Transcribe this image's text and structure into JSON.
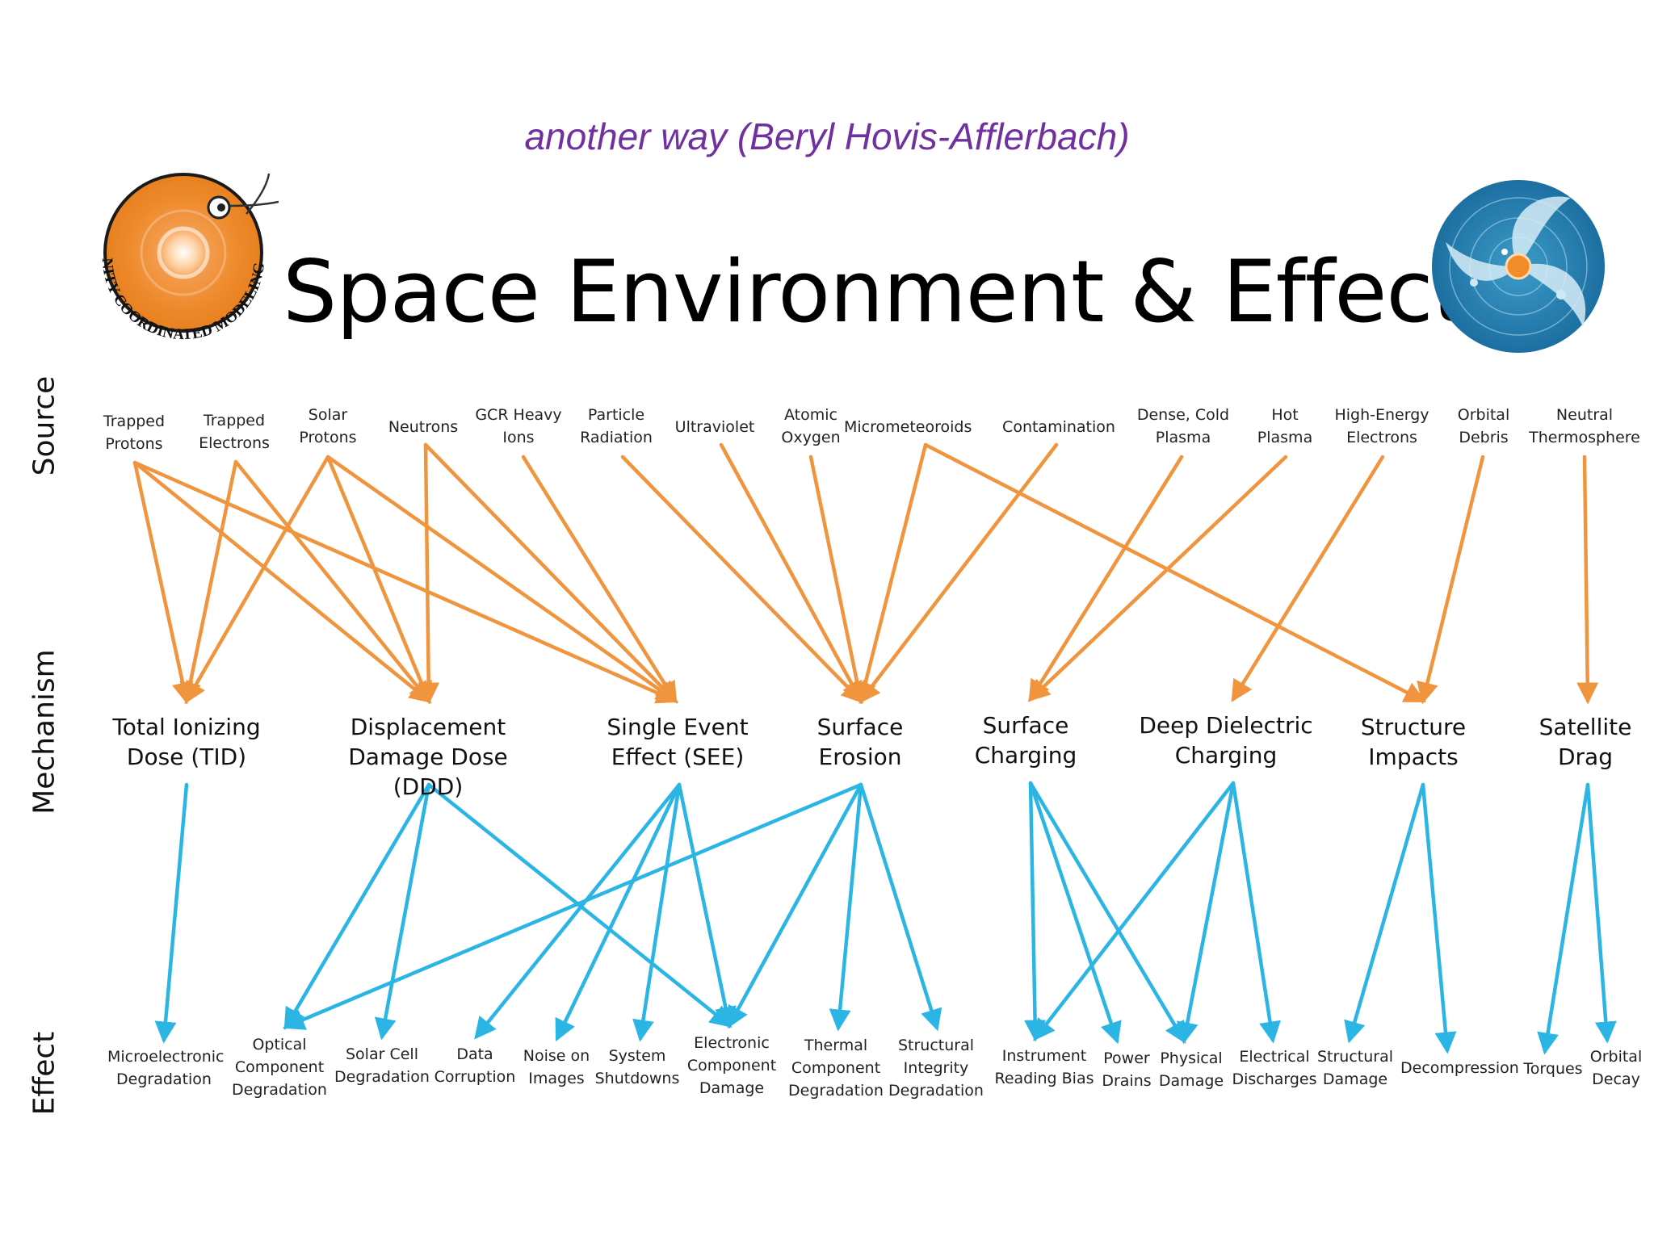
{
  "subtitle": "another way (Beryl Hovis-Afflerbach)",
  "title": "Space Environment & Effects",
  "logos": {
    "left": {
      "icon": "ccmc-sun-logo",
      "text": "COMMUNITY COORDINATED MODELING CENTER"
    },
    "right": {
      "icon": "space-weather-globe-logo"
    }
  },
  "axis_labels": {
    "source": "Source",
    "mechanism": "Mechanism",
    "effect": "Effect"
  },
  "colors": {
    "source_arrows": "#f0953e",
    "effect_arrows": "#2bb5e5",
    "subtitle": "#7030a0"
  },
  "sources": [
    "Trapped\nProtons",
    "Trapped\nElectrons",
    "Solar\nProtons",
    "Neutrons",
    "GCR Heavy\nIons",
    "Particle\nRadiation",
    "Ultraviolet",
    "Atomic\nOxygen",
    "Micrometeoroids",
    "Contamination",
    "Dense, Cold\nPlasma",
    "Hot\nPlasma",
    "High-Energy\nElectrons",
    "Orbital\nDebris",
    "Neutral\nThermosphere"
  ],
  "mechanisms": [
    "Total Ionizing\nDose (TID)",
    "Displacement\nDamage Dose (DDD)",
    "Single Event\nEffect (SEE)",
    "Surface\nErosion",
    "Surface\nCharging",
    "Deep Dielectric\nCharging",
    "Structure\nImpacts",
    "Satellite\nDrag"
  ],
  "effects": [
    "Microelectronic\nDegradation",
    "Optical\nComponent\nDegradation",
    "Solar Cell\nDegradation",
    "Data\nCorruption",
    "Noise on\nImages",
    "System\nShutdowns",
    "Electronic\nComponent\nDamage",
    "Thermal\nComponent\nDegradation",
    "Structural\nIntegrity\nDegradation",
    "Instrument\nReading Bias",
    "Power\nDrains",
    "Physical\nDamage",
    "Electrical\nDischarges",
    "Structural\nDamage",
    "Decompression",
    "Torques",
    "Orbital\nDecay"
  ],
  "source_to_mechanism": [
    [
      0,
      0
    ],
    [
      0,
      1
    ],
    [
      0,
      2
    ],
    [
      1,
      0
    ],
    [
      1,
      1
    ],
    [
      2,
      0
    ],
    [
      2,
      1
    ],
    [
      2,
      2
    ],
    [
      3,
      1
    ],
    [
      3,
      2
    ],
    [
      4,
      2
    ],
    [
      5,
      3
    ],
    [
      6,
      3
    ],
    [
      7,
      3
    ],
    [
      8,
      3
    ],
    [
      8,
      6
    ],
    [
      9,
      3
    ],
    [
      10,
      4
    ],
    [
      11,
      4
    ],
    [
      12,
      5
    ],
    [
      13,
      6
    ],
    [
      14,
      7
    ]
  ],
  "mechanism_to_effect": [
    [
      0,
      0
    ],
    [
      1,
      1
    ],
    [
      1,
      2
    ],
    [
      1,
      6
    ],
    [
      2,
      3
    ],
    [
      2,
      4
    ],
    [
      2,
      5
    ],
    [
      2,
      6
    ],
    [
      3,
      1
    ],
    [
      3,
      6
    ],
    [
      3,
      7
    ],
    [
      3,
      8
    ],
    [
      4,
      9
    ],
    [
      4,
      10
    ],
    [
      4,
      11
    ],
    [
      5,
      9
    ],
    [
      5,
      11
    ],
    [
      5,
      12
    ],
    [
      6,
      13
    ],
    [
      6,
      14
    ],
    [
      7,
      15
    ],
    [
      7,
      16
    ]
  ]
}
